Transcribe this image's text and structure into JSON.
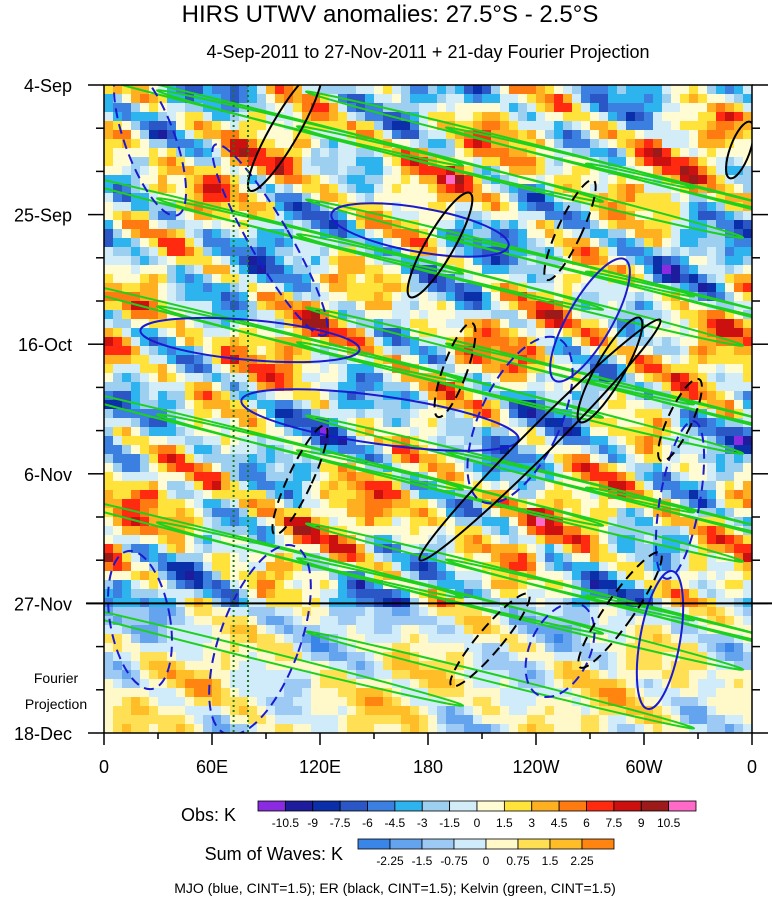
{
  "chart_data": {
    "type": "heatmap",
    "title": "HIRS UTWV anomalies: 27.5°S - 2.5°S",
    "subtitle": "4-Sep-2011 to 27-Nov-2011 + 21-day Fourier Projection",
    "x_ticks": [
      "0",
      "60E",
      "120E",
      "180",
      "120W",
      "60W",
      "0"
    ],
    "x_range": [
      0,
      360
    ],
    "y_ticks": [
      "4-Sep",
      "25-Sep",
      "16-Oct",
      "6-Nov",
      "27-Nov",
      "18-Dec"
    ],
    "y_day_offsets": [
      0,
      21,
      42,
      63,
      84,
      105
    ],
    "projection_label_line1": "Fourier",
    "projection_label_line2": "Projection",
    "obs_end_day": 84,
    "reference_lines_lon": [
      72,
      80
    ],
    "obs_legend": {
      "label": "Obs: K",
      "levels": [
        "-10.5",
        "-9",
        "-7.5",
        "-6",
        "-4.5",
        "-3",
        "-1.5",
        "0",
        "1.5",
        "3",
        "4.5",
        "6",
        "7.5",
        "9",
        "10.5"
      ],
      "colors": [
        "#8a2be2",
        "#1c1c9c",
        "#0b2fa8",
        "#2a56c6",
        "#3b7fe0",
        "#2db4ee",
        "#9dd0f0",
        "#d2ecf8",
        "#fffbd2",
        "#ffe33a",
        "#ffb020",
        "#ff7a10",
        "#ff2a10",
        "#cc1010",
        "#9c1a1a",
        "#ff69c8"
      ]
    },
    "waves_legend": {
      "label": "Sum of Waves: K",
      "levels": [
        "-2.25",
        "-1.5",
        "-0.75",
        "0",
        "0.75",
        "1.5",
        "2.25"
      ],
      "colors": [
        "#3a86e8",
        "#64a4ee",
        "#9ccaf4",
        "#d0ecfa",
        "#fff8c8",
        "#ffe055",
        "#ffbe28",
        "#ff8410"
      ]
    },
    "footer": "MJO (blue, CINT=1.5); ER (black, CINT=1.5); Kelvin (green, CINT=1.5)",
    "series_colors": {
      "mjo": "#1a1ad0",
      "er": "#000000",
      "kelvin": "#1ed01e"
    }
  }
}
